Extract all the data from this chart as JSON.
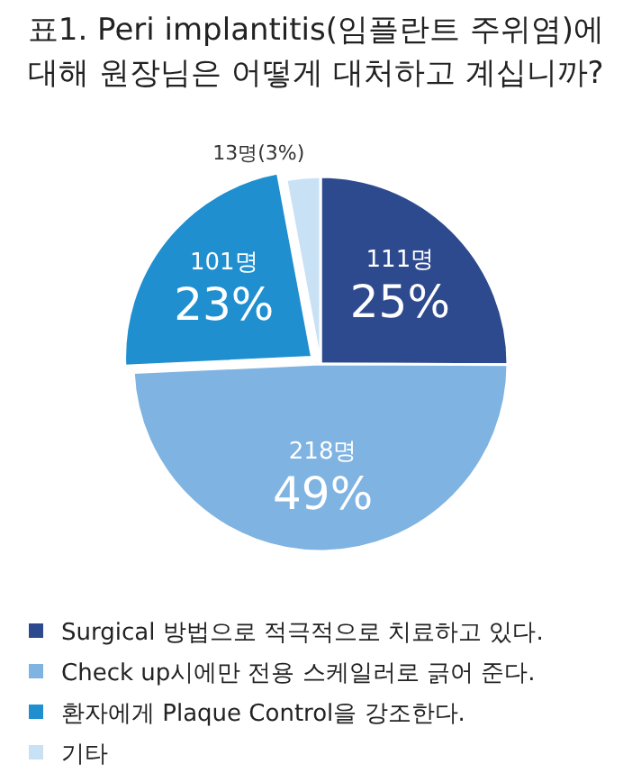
{
  "chart_data": {
    "type": "pie",
    "title": "표1. Peri implantitis(임플란트 주위염)에 대해 원장님은 어떻게 대처하고 계십니까?",
    "categories": [
      "Surgical 방법으로 적극적으로 치료하고 있다.",
      "Check up시에만 전용 스케일러로 긁어 준다.",
      "환자에게 Plaque Control을 강조한다.",
      "기타"
    ],
    "values": [
      111,
      218,
      101,
      13
    ],
    "value_labels": [
      "111명\n25%",
      "218명\n49%",
      "101명\n23%",
      "13명(3%)"
    ],
    "colors": [
      "#2e4a8e",
      "#7fb3e2",
      "#1f8fd0",
      "#c9e1f5"
    ],
    "legend": "bottom"
  }
}
